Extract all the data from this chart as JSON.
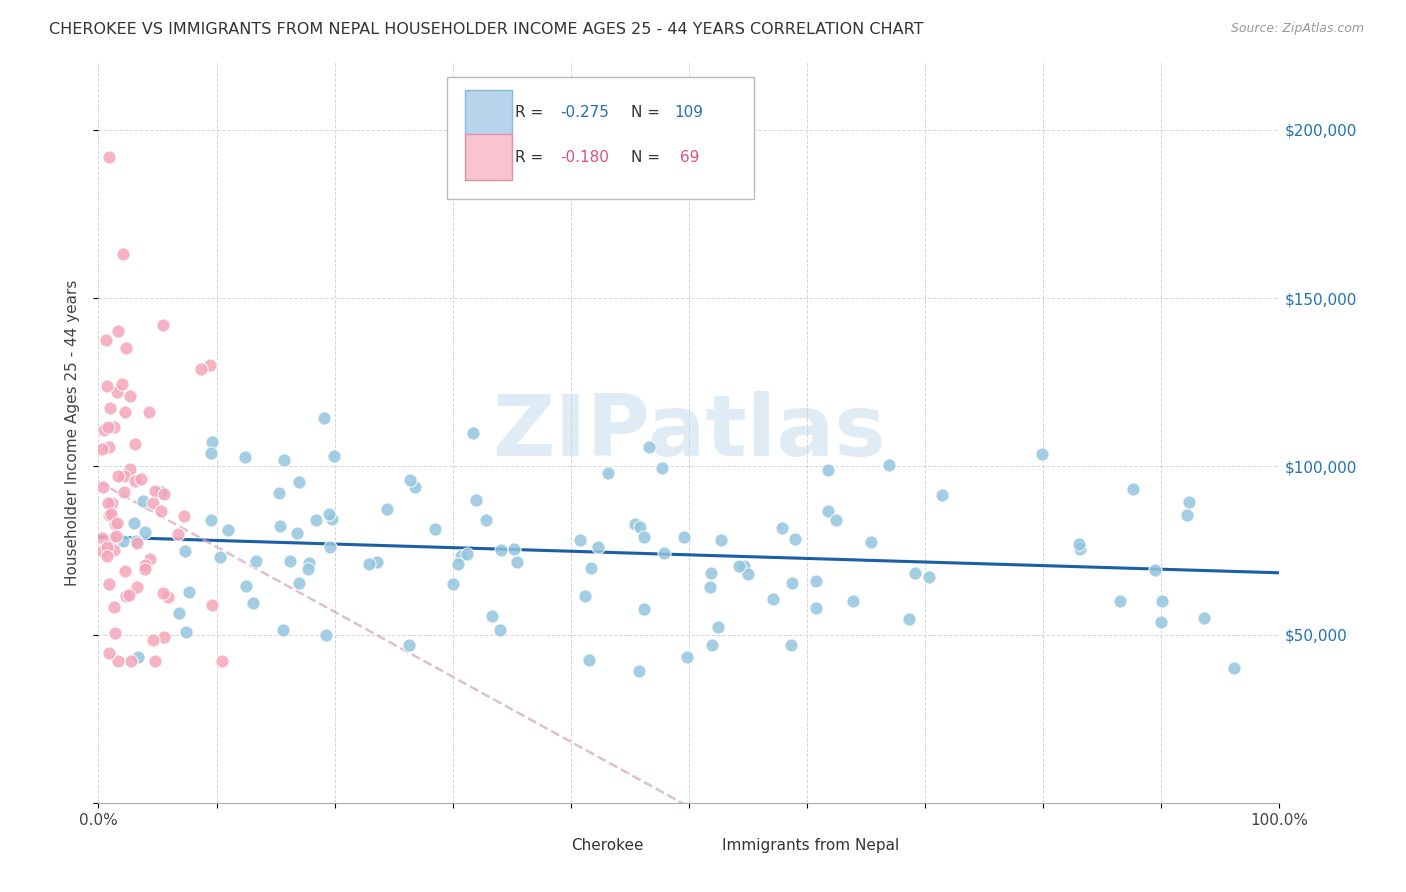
{
  "title": "CHEROKEE VS IMMIGRANTS FROM NEPAL HOUSEHOLDER INCOME AGES 25 - 44 YEARS CORRELATION CHART",
  "source": "Source: ZipAtlas.com",
  "ylabel": "Householder Income Ages 25 - 44 years",
  "ytick_labels": [
    "",
    "$50,000",
    "$100,000",
    "$150,000",
    "$200,000"
  ],
  "ytick_values": [
    0,
    50000,
    100000,
    150000,
    200000
  ],
  "xlim": [
    0.0,
    1.0
  ],
  "ylim": [
    0,
    220000
  ],
  "watermark": "ZIPatlas",
  "cherokee_color": "#92c5de",
  "nepal_color": "#f4a6b9",
  "cherokee_edge": "#5a9ec9",
  "nepal_edge": "#e06080",
  "cherokee_trendline_color": "#1a5fa8",
  "nepal_trendline_color": "#dbb8c8",
  "cherokee_legend_fill": "#b8d4ed",
  "nepal_legend_fill": "#f9c4d2",
  "cherokee_R": -0.275,
  "cherokee_N": 109,
  "nepal_R": -0.18,
  "nepal_N": 69,
  "ytick_color": "#2171b5",
  "grid_color": "#cccccc",
  "title_color": "#333333",
  "source_color": "#999999",
  "watermark_color": "#c5ddf0"
}
